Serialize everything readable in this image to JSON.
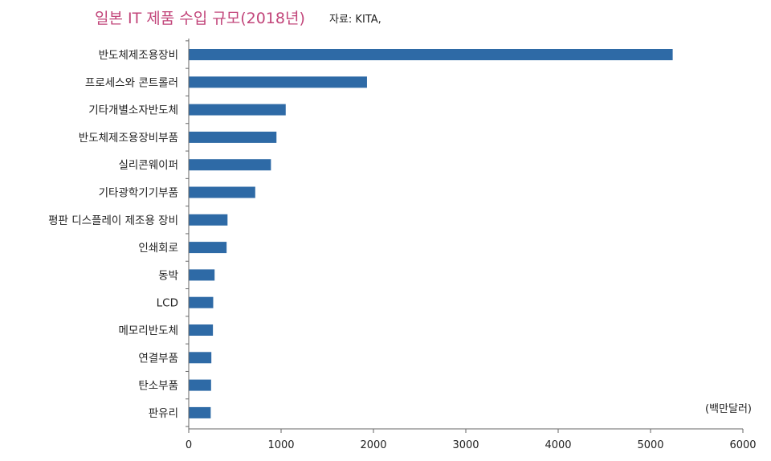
{
  "header": {
    "title": "일본 IT 제품 수입 규모(2018년)",
    "source": "자료: KITA,"
  },
  "chart_data": {
    "type": "bar",
    "orientation": "horizontal",
    "title": "일본 IT 제품 수입 규모(2018년)",
    "unit_label": "(백만달러)",
    "categories": [
      "반도체제조용장비",
      "프로세스와 콘트롤러",
      "기타개별소자반도체",
      "반도체제조용장비부품",
      "실리콘웨이퍼",
      "기타광학기기부품",
      "평판 디스플레이 제조용 장비",
      "인쇄회로",
      "동박",
      "LCD",
      "메모리반도체",
      "연결부품",
      "탄소부품",
      "판유리"
    ],
    "values": [
      5240,
      1930,
      1050,
      950,
      890,
      720,
      420,
      410,
      280,
      265,
      262,
      245,
      242,
      238
    ],
    "xlim": [
      0,
      6000
    ],
    "xticks": [
      "0",
      "1000",
      "2000",
      "3000",
      "4000",
      "5000",
      "6000"
    ],
    "grid": false,
    "bar_color": "#2e6aa6"
  }
}
